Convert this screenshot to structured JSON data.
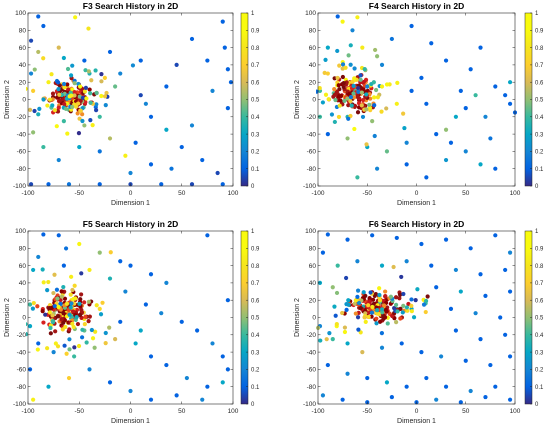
{
  "colorbar_ticks": [
    "0",
    "0.1",
    "0.2",
    "0.3",
    "0.4",
    "0.5",
    "0.6",
    "0.7",
    "0.8",
    "0.9",
    "1"
  ],
  "chart_data": [
    {
      "type": "scatter",
      "title": "F3 Search History in 2D",
      "xlabel": "Dimension 1",
      "ylabel": "Dimension 2",
      "xlim": [
        -100,
        100
      ],
      "ylim": [
        -100,
        100
      ],
      "x_ticks": [
        "-100",
        "-50",
        "0",
        "50",
        "100"
      ],
      "y_ticks": [
        "-100",
        "-80",
        "-60",
        "-40",
        "-20",
        "0",
        "20",
        "40",
        "60",
        "80",
        "100"
      ],
      "color_range": [
        0,
        1
      ],
      "colormap": "parula",
      "grid": false,
      "cluster": {
        "center": [
          -57,
          3
        ],
        "spread": [
          10,
          8
        ]
      },
      "points_seed": 3,
      "points": [
        [
          -90,
          96,
          0.1
        ],
        [
          -54,
          95,
          0.95
        ],
        [
          -41,
          82,
          0.8
        ],
        [
          -85,
          85,
          0.1
        ],
        [
          -97,
          68,
          0.05
        ],
        [
          -70,
          60,
          0.6
        ],
        [
          -90,
          55,
          0.55
        ],
        [
          -65,
          48,
          0.3
        ],
        [
          -40,
          30,
          0.35
        ],
        [
          -45,
          45,
          0.1
        ],
        [
          -20,
          55,
          0.1
        ],
        [
          -10,
          30,
          0.2
        ],
        [
          10,
          45,
          0.1
        ],
        [
          10,
          5,
          0.05
        ],
        [
          35,
          15,
          0.1
        ],
        [
          45,
          40,
          0.05
        ],
        [
          60,
          70,
          0.1
        ],
        [
          90,
          90,
          0.1
        ],
        [
          92,
          60,
          0.1
        ],
        [
          95,
          35,
          0.1
        ],
        [
          98,
          20,
          0.1
        ],
        [
          95,
          -10,
          0.1
        ],
        [
          60,
          -30,
          0.2
        ],
        [
          35,
          -35,
          0.3
        ],
        [
          20,
          -20,
          0.1
        ],
        [
          5,
          -50,
          0.1
        ],
        [
          -5,
          -65,
          0.9
        ],
        [
          -30,
          -60,
          0.15
        ],
        [
          -50,
          -55,
          0.3
        ],
        [
          -70,
          -70,
          0.2
        ],
        [
          -85,
          -55,
          0.4
        ],
        [
          -95,
          -38,
          0.5
        ],
        [
          -98,
          -12,
          0.6
        ],
        [
          -95,
          10,
          0.7
        ],
        [
          -97,
          30,
          0.2
        ],
        [
          -97,
          -98,
          0.05
        ],
        [
          -80,
          -98,
          0.1
        ],
        [
          -60,
          -98,
          0.15
        ],
        [
          -30,
          -98,
          0.1
        ],
        [
          0,
          -98,
          0.05
        ],
        [
          30,
          -98,
          0.1
        ],
        [
          60,
          -98,
          0.05
        ],
        [
          90,
          -98,
          0.1
        ],
        [
          -20,
          -45,
          0.55
        ],
        [
          -45,
          -30,
          0.5
        ],
        [
          70,
          -70,
          0.1
        ],
        [
          85,
          -85,
          0.05
        ],
        [
          50,
          -55,
          0.1
        ],
        [
          20,
          -75,
          0.1
        ],
        [
          0,
          -85,
          0.2
        ],
        [
          -60,
          -12,
          0.45
        ],
        [
          -30,
          -20,
          0.4
        ],
        [
          -65,
          -25,
          0.4
        ],
        [
          80,
          10,
          0.2
        ],
        [
          -15,
          15,
          0.45
        ],
        [
          15,
          -5,
          0.2
        ],
        [
          75,
          45,
          0.1
        ],
        [
          40,
          -80,
          0.15
        ],
        [
          -80,
          20,
          0.9
        ],
        [
          -25,
          25,
          0.7
        ]
      ]
    },
    {
      "type": "scatter",
      "title": "F4 Search History in 2D",
      "xlabel": "Dimension 1",
      "ylabel": "Dimension 2",
      "xlim": [
        -100,
        100
      ],
      "ylim": [
        -100,
        100
      ],
      "x_ticks": [
        "-100",
        "-50",
        "0",
        "50",
        "100"
      ],
      "y_ticks": [
        "-100",
        "-80",
        "-60",
        "-40",
        "-20",
        "0",
        "20",
        "40",
        "60",
        "80",
        "100"
      ],
      "color_range": [
        0,
        1
      ],
      "colormap": "parula",
      "grid": false,
      "cluster": {
        "center": [
          -65,
          8
        ],
        "spread": [
          10,
          9
        ]
      },
      "points_seed": 4,
      "points": [
        [
          -80,
          96,
          0.1
        ],
        [
          -75,
          90,
          0.95
        ],
        [
          -60,
          95,
          0.9
        ],
        [
          -65,
          80,
          0.2
        ],
        [
          -90,
          60,
          0.3
        ],
        [
          -55,
          60,
          0.85
        ],
        [
          -40,
          50,
          0.5
        ],
        [
          -35,
          40,
          0.2
        ],
        [
          -25,
          70,
          0.15
        ],
        [
          -5,
          85,
          0.1
        ],
        [
          15,
          65,
          0.1
        ],
        [
          30,
          45,
          0.1
        ],
        [
          55,
          35,
          0.1
        ],
        [
          65,
          60,
          0.1
        ],
        [
          80,
          15,
          0.1
        ],
        [
          90,
          5,
          0.1
        ],
        [
          95,
          -5,
          0.1
        ],
        [
          100,
          -15,
          0.1
        ],
        [
          95,
          20,
          0.3
        ],
        [
          70,
          -20,
          0.2
        ],
        [
          50,
          -10,
          0.1
        ],
        [
          40,
          -20,
          0.3
        ],
        [
          30,
          -35,
          0.5
        ],
        [
          20,
          -40,
          0.1
        ],
        [
          -10,
          -50,
          0.2
        ],
        [
          -30,
          -60,
          0.45
        ],
        [
          -50,
          -55,
          0.3
        ],
        [
          -70,
          -45,
          0.5
        ],
        [
          -90,
          -40,
          0.1
        ],
        [
          -98,
          -20,
          0.4
        ],
        [
          -98,
          10,
          0.4
        ],
        [
          -90,
          30,
          0.7
        ],
        [
          -10,
          -75,
          0.1
        ],
        [
          10,
          -90,
          0.1
        ],
        [
          30,
          -70,
          0.25
        ],
        [
          50,
          -60,
          0.2
        ],
        [
          65,
          -75,
          0.3
        ],
        [
          80,
          -80,
          0.1
        ],
        [
          -40,
          -80,
          0.2
        ],
        [
          -60,
          -90,
          0.4
        ],
        [
          -20,
          -5,
          0.9
        ],
        [
          -5,
          10,
          0.1
        ],
        [
          10,
          -5,
          0.1
        ],
        [
          5,
          25,
          0.1
        ],
        [
          -45,
          -25,
          0.5
        ],
        [
          -70,
          -20,
          0.35
        ],
        [
          45,
          10,
          0.1
        ],
        [
          60,
          5,
          0.4
        ],
        [
          35,
          -50,
          0.1
        ],
        [
          75,
          -45,
          0.15
        ]
      ]
    },
    {
      "type": "scatter",
      "title": "F5 Search History in 2D",
      "xlabel": "Dimension 1",
      "ylabel": "Dimension 2",
      "xlim": [
        -100,
        100
      ],
      "ylim": [
        -100,
        100
      ],
      "x_ticks": [
        "-100",
        "-50",
        "0",
        "50",
        "100"
      ],
      "y_ticks": [
        "-100",
        "-80",
        "-60",
        "-40",
        "-20",
        "0",
        "20",
        "40",
        "60",
        "80",
        "100"
      ],
      "color_range": [
        0,
        1
      ],
      "colormap": "parula",
      "grid": false,
      "cluster": {
        "center": [
          -62,
          5
        ],
        "spread": [
          11,
          10
        ]
      },
      "points_seed": 5,
      "points": [
        [
          -85,
          96,
          0.1
        ],
        [
          -70,
          95,
          0.1
        ],
        [
          -50,
          85,
          0.95
        ],
        [
          -30,
          75,
          0.5
        ],
        [
          -10,
          65,
          0.1
        ],
        [
          -90,
          70,
          0.2
        ],
        [
          -95,
          55,
          0.3
        ],
        [
          -65,
          60,
          0.1
        ],
        [
          -40,
          55,
          0.85
        ],
        [
          -20,
          45,
          0.35
        ],
        [
          0,
          60,
          0.1
        ],
        [
          20,
          50,
          0.1
        ],
        [
          35,
          40,
          0.2
        ],
        [
          75,
          95,
          0.1
        ],
        [
          -5,
          30,
          0.2
        ],
        [
          15,
          15,
          0.1
        ],
        [
          30,
          5,
          0.2
        ],
        [
          50,
          -5,
          0.1
        ],
        [
          65,
          -15,
          0.1
        ],
        [
          80,
          -30,
          0.2
        ],
        [
          90,
          -45,
          0.1
        ],
        [
          95,
          -60,
          0.1
        ],
        [
          90,
          -75,
          0.3
        ],
        [
          75,
          -80,
          0.1
        ],
        [
          55,
          -70,
          0.2
        ],
        [
          35,
          -55,
          0.1
        ],
        [
          20,
          -45,
          0.1
        ],
        [
          5,
          -30,
          0.3
        ],
        [
          -15,
          -25,
          0.6
        ],
        [
          -35,
          -35,
          0.5
        ],
        [
          -55,
          -45,
          0.4
        ],
        [
          -75,
          -40,
          0.2
        ],
        [
          -90,
          -30,
          0.1
        ],
        [
          -98,
          -10,
          0.3
        ],
        [
          -98,
          15,
          0.4
        ],
        [
          -98,
          -60,
          0.1
        ],
        [
          -95,
          -95,
          0.9
        ],
        [
          -80,
          -80,
          0.3
        ],
        [
          -60,
          -70,
          0.7
        ],
        [
          -40,
          -60,
          0.2
        ],
        [
          -20,
          -75,
          0.1
        ],
        [
          0,
          -85,
          0.2
        ],
        [
          20,
          -95,
          0.1
        ],
        [
          45,
          -90,
          0.1
        ],
        [
          70,
          -95,
          0.2
        ],
        [
          95,
          20,
          0.1
        ],
        [
          -30,
          10,
          0.75
        ],
        [
          -10,
          -5,
          0.1
        ],
        [
          10,
          -15,
          0.3
        ],
        [
          -45,
          -15,
          0.45
        ]
      ]
    },
    {
      "type": "scatter",
      "title": "F6 Search History in 2D",
      "xlabel": "Dimension 1",
      "ylabel": "Dimension 2",
      "xlim": [
        -100,
        100
      ],
      "ylim": [
        -100,
        100
      ],
      "x_ticks": [
        "-100",
        "-50",
        "0",
        "50",
        "100"
      ],
      "y_ticks": [
        "-100",
        "-80",
        "-60",
        "-40",
        "-20",
        "0",
        "20",
        "40",
        "60",
        "80",
        "100"
      ],
      "color_range": [
        0,
        1
      ],
      "colormap": "parula",
      "grid": false,
      "cluster": {
        "center": [
          -42,
          12
        ],
        "spread": [
          14,
          8
        ]
      },
      "points_seed": 6,
      "points": [
        [
          -90,
          96,
          0.1
        ],
        [
          -70,
          90,
          0.1
        ],
        [
          -45,
          95,
          0.1
        ],
        [
          -20,
          92,
          0.1
        ],
        [
          5,
          85,
          0.1
        ],
        [
          30,
          90,
          0.1
        ],
        [
          55,
          80,
          0.1
        ],
        [
          80,
          95,
          0.1
        ],
        [
          95,
          75,
          0.2
        ],
        [
          -95,
          75,
          0.1
        ],
        [
          -80,
          60,
          0.4
        ],
        [
          -60,
          65,
          0.2
        ],
        [
          -35,
          60,
          0.3
        ],
        [
          -10,
          65,
          0.2
        ],
        [
          15,
          60,
          0.1
        ],
        [
          40,
          55,
          0.2
        ],
        [
          65,
          50,
          0.1
        ],
        [
          90,
          55,
          0.1
        ],
        [
          -98,
          40,
          0.3
        ],
        [
          -85,
          35,
          0.5
        ],
        [
          20,
          35,
          0.1
        ],
        [
          45,
          30,
          0.3
        ],
        [
          70,
          25,
          0.1
        ],
        [
          95,
          30,
          0.1
        ],
        [
          35,
          10,
          0.1
        ],
        [
          60,
          5,
          0.2
        ],
        [
          85,
          0,
          0.1
        ],
        [
          40,
          -15,
          0.1
        ],
        [
          65,
          -25,
          0.1
        ],
        [
          90,
          -20,
          0.1
        ],
        [
          -98,
          -10,
          0.2
        ],
        [
          -85,
          -25,
          0.4
        ],
        [
          -70,
          -30,
          0.3
        ],
        [
          -55,
          -40,
          0.6
        ],
        [
          -35,
          -35,
          0.2
        ],
        [
          -15,
          -30,
          0.1
        ],
        [
          5,
          -40,
          0.1
        ],
        [
          25,
          -45,
          0.2
        ],
        [
          50,
          -50,
          0.1
        ],
        [
          75,
          -55,
          0.1
        ],
        [
          95,
          -45,
          0.1
        ],
        [
          -90,
          -55,
          0.1
        ],
        [
          -70,
          -65,
          0.2
        ],
        [
          -50,
          -70,
          0.1
        ],
        [
          -30,
          -75,
          0.3
        ],
        [
          -10,
          -80,
          0.1
        ],
        [
          10,
          -70,
          0.1
        ],
        [
          30,
          -80,
          0.1
        ],
        [
          55,
          -85,
          0.2
        ],
        [
          80,
          -80,
          0.1
        ],
        [
          -95,
          -90,
          0.2
        ],
        [
          -75,
          -95,
          0.1
        ],
        [
          -50,
          -98,
          0.1
        ],
        [
          -25,
          -92,
          0.1
        ],
        [
          0,
          -98,
          0.1
        ],
        [
          20,
          -95,
          0.2
        ],
        [
          45,
          -98,
          0.1
        ],
        [
          70,
          -92,
          0.1
        ],
        [
          95,
          -95,
          0.1
        ],
        [
          -5,
          10,
          0.3
        ]
      ]
    }
  ]
}
